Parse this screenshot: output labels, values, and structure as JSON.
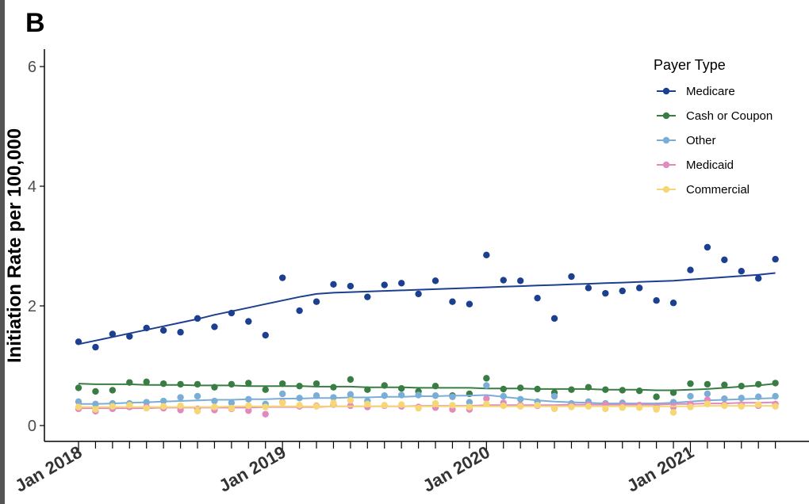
{
  "panel": {
    "label": "B"
  },
  "chart_data": {
    "type": "scatter",
    "title": "",
    "xlabel": "",
    "ylabel": "Initiation Rate per 100,000",
    "ylim": [
      0,
      6.3
    ],
    "yticks": [
      0,
      2,
      4,
      6
    ],
    "x_ticks": [
      {
        "label": "Jan 2018",
        "month": 0
      },
      {
        "label": "Jan 2019",
        "month": 12
      },
      {
        "label": "Jan 2020",
        "month": 24
      },
      {
        "label": "Jan 2021",
        "month": 36
      }
    ],
    "x": [
      0,
      1,
      2,
      3,
      4,
      5,
      6,
      7,
      8,
      9,
      10,
      11,
      12,
      13,
      14,
      15,
      16,
      17,
      18,
      19,
      20,
      21,
      22,
      23,
      24,
      25,
      26,
      27,
      28,
      29,
      30,
      31,
      32,
      33,
      34,
      35,
      36,
      37,
      38,
      39,
      40,
      41
    ],
    "legend": {
      "title": "Payer Type",
      "position": "top-right"
    },
    "series": [
      {
        "name": "Medicare",
        "color": "#1d3f8f",
        "points": [
          1.4,
          1.31,
          1.53,
          1.49,
          1.63,
          1.59,
          1.56,
          1.79,
          1.65,
          1.88,
          1.74,
          1.51,
          2.47,
          1.92,
          2.07,
          2.36,
          2.33,
          2.15,
          2.35,
          2.38,
          2.2,
          2.42,
          2.07,
          2.03,
          2.85,
          2.43,
          2.42,
          2.13,
          1.79,
          2.49,
          2.3,
          2.21,
          2.25,
          2.3,
          2.09,
          2.05,
          2.6,
          2.98,
          2.77,
          2.58,
          2.46,
          2.78
        ],
        "trend": [
          1.36,
          1.42,
          1.48,
          1.54,
          1.6,
          1.66,
          1.72,
          1.78,
          1.85,
          1.91,
          1.97,
          2.03,
          2.09,
          2.15,
          2.2,
          2.22,
          2.23,
          2.24,
          2.25,
          2.26,
          2.27,
          2.28,
          2.29,
          2.3,
          2.31,
          2.32,
          2.33,
          2.34,
          2.35,
          2.36,
          2.37,
          2.38,
          2.39,
          2.4,
          2.41,
          2.42,
          2.44,
          2.46,
          2.48,
          2.5,
          2.52,
          2.55
        ]
      },
      {
        "name": "Cash or Coupon",
        "color": "#3a7d44",
        "points": [
          0.63,
          0.57,
          0.59,
          0.72,
          0.73,
          0.7,
          0.69,
          0.69,
          0.64,
          0.69,
          0.71,
          0.6,
          0.7,
          0.66,
          0.7,
          0.64,
          0.77,
          0.6,
          0.67,
          0.62,
          0.57,
          0.66,
          0.5,
          0.53,
          0.79,
          0.61,
          0.63,
          0.61,
          0.55,
          0.6,
          0.64,
          0.6,
          0.59,
          0.58,
          0.48,
          0.55,
          0.7,
          0.69,
          0.68,
          0.66,
          0.69,
          0.71
        ],
        "trend": [
          0.7,
          0.69,
          0.69,
          0.69,
          0.68,
          0.68,
          0.68,
          0.67,
          0.67,
          0.67,
          0.66,
          0.66,
          0.66,
          0.66,
          0.65,
          0.65,
          0.65,
          0.64,
          0.64,
          0.64,
          0.63,
          0.63,
          0.63,
          0.63,
          0.62,
          0.62,
          0.62,
          0.61,
          0.61,
          0.61,
          0.61,
          0.6,
          0.6,
          0.6,
          0.59,
          0.59,
          0.6,
          0.61,
          0.63,
          0.65,
          0.67,
          0.7
        ]
      },
      {
        "name": "Other",
        "color": "#7aaed6",
        "points": [
          0.4,
          0.36,
          0.37,
          0.37,
          0.39,
          0.41,
          0.47,
          0.49,
          0.41,
          0.38,
          0.44,
          0.36,
          0.53,
          0.46,
          0.5,
          0.47,
          0.52,
          0.41,
          0.5,
          0.51,
          0.51,
          0.5,
          0.48,
          0.39,
          0.67,
          0.49,
          0.44,
          0.4,
          0.49,
          0.37,
          0.4,
          0.37,
          0.38,
          0.34,
          0.33,
          0.39,
          0.49,
          0.53,
          0.45,
          0.46,
          0.48,
          0.49
        ],
        "trend": [
          0.36,
          0.36,
          0.37,
          0.38,
          0.39,
          0.4,
          0.41,
          0.42,
          0.43,
          0.43,
          0.44,
          0.44,
          0.45,
          0.45,
          0.46,
          0.46,
          0.47,
          0.47,
          0.48,
          0.48,
          0.49,
          0.49,
          0.5,
          0.5,
          0.51,
          0.48,
          0.45,
          0.42,
          0.4,
          0.39,
          0.38,
          0.37,
          0.37,
          0.37,
          0.37,
          0.38,
          0.4,
          0.42,
          0.43,
          0.44,
          0.45,
          0.46
        ]
      },
      {
        "name": "Medicaid",
        "color": "#e08ac0",
        "points": [
          0.28,
          0.24,
          0.28,
          0.31,
          0.31,
          0.29,
          0.26,
          0.28,
          0.26,
          0.28,
          0.25,
          0.19,
          0.39,
          0.32,
          0.33,
          0.35,
          0.33,
          0.31,
          0.33,
          0.32,
          0.31,
          0.3,
          0.27,
          0.27,
          0.45,
          0.38,
          0.34,
          0.33,
          0.29,
          0.33,
          0.35,
          0.35,
          0.34,
          0.34,
          0.29,
          0.31,
          0.36,
          0.43,
          0.35,
          0.35,
          0.33,
          0.36
        ],
        "trend": [
          0.29,
          0.29,
          0.29,
          0.29,
          0.29,
          0.3,
          0.3,
          0.3,
          0.3,
          0.3,
          0.3,
          0.31,
          0.31,
          0.31,
          0.31,
          0.32,
          0.32,
          0.32,
          0.32,
          0.32,
          0.33,
          0.33,
          0.33,
          0.33,
          0.34,
          0.34,
          0.34,
          0.34,
          0.34,
          0.35,
          0.35,
          0.35,
          0.35,
          0.35,
          0.35,
          0.36,
          0.36,
          0.37,
          0.37,
          0.38,
          0.38,
          0.39
        ]
      },
      {
        "name": "Commercial",
        "color": "#f7d774",
        "points": [
          0.31,
          0.27,
          0.32,
          0.34,
          0.29,
          0.32,
          0.33,
          0.24,
          0.31,
          0.29,
          0.33,
          0.31,
          0.38,
          0.34,
          0.32,
          0.38,
          0.42,
          0.36,
          0.34,
          0.35,
          0.29,
          0.37,
          0.34,
          0.31,
          0.36,
          0.33,
          0.32,
          0.34,
          0.28,
          0.31,
          0.32,
          0.28,
          0.3,
          0.3,
          0.27,
          0.22,
          0.31,
          0.36,
          0.33,
          0.32,
          0.35,
          0.32
        ],
        "trend": [
          0.31,
          0.31,
          0.31,
          0.31,
          0.31,
          0.31,
          0.31,
          0.31,
          0.31,
          0.32,
          0.32,
          0.32,
          0.32,
          0.32,
          0.32,
          0.32,
          0.32,
          0.32,
          0.32,
          0.32,
          0.32,
          0.32,
          0.32,
          0.32,
          0.32,
          0.32,
          0.32,
          0.32,
          0.32,
          0.32,
          0.32,
          0.32,
          0.32,
          0.32,
          0.32,
          0.32,
          0.32,
          0.33,
          0.33,
          0.33,
          0.33,
          0.33
        ]
      }
    ]
  }
}
